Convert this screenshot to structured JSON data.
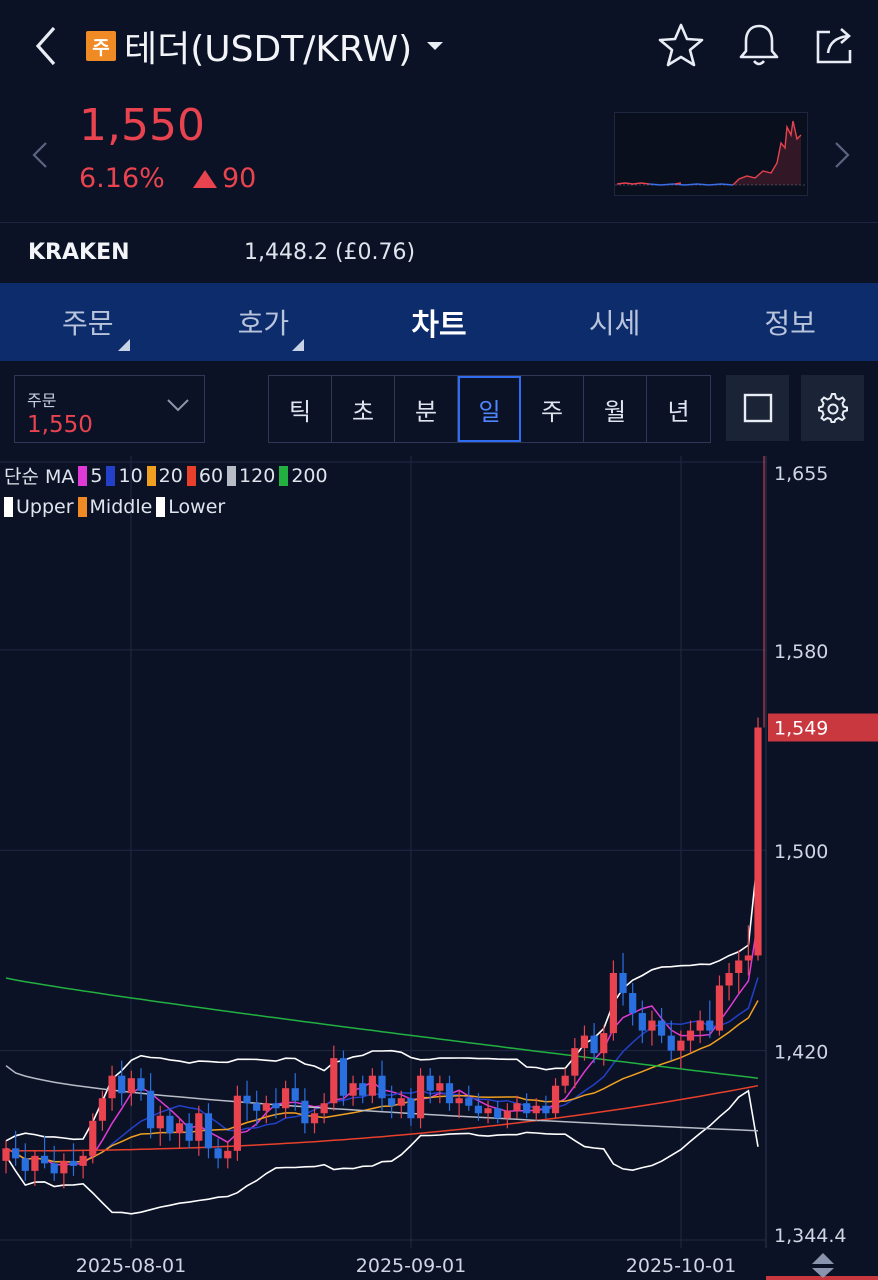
{
  "header": {
    "badge": "주",
    "title": "테더(USDT/KRW)"
  },
  "price": {
    "current": "1,550",
    "change_pct": "6.16%",
    "change_abs": "90"
  },
  "exchange": {
    "name": "KRAKEN",
    "value": "1,448.2 (£0.76)"
  },
  "tabs": [
    {
      "label": "주문",
      "has_menu": true
    },
    {
      "label": "호가",
      "has_menu": true
    },
    {
      "label": "차트",
      "active": true
    },
    {
      "label": "시세"
    },
    {
      "label": "정보"
    }
  ],
  "order_select": {
    "label": "주문",
    "value": "1,550"
  },
  "periods": [
    "틱",
    "초",
    "분",
    "일",
    "주",
    "월",
    "년"
  ],
  "selected_period": "일",
  "legend": {
    "ma_prefix": "단순 MA",
    "ma": [
      {
        "label": "5",
        "color": "#e03ad6"
      },
      {
        "label": "10",
        "color": "#2340c8"
      },
      {
        "label": "20",
        "color": "#f0a020"
      },
      {
        "label": "60",
        "color": "#e8402a"
      },
      {
        "label": "120",
        "color": "#b8bcc6"
      },
      {
        "label": "200",
        "color": "#22b040"
      }
    ],
    "bands": [
      {
        "label": "Upper",
        "color": "#ffffff"
      },
      {
        "label": "Middle",
        "color": "#f08a24"
      },
      {
        "label": "Lower",
        "color": "#ffffff"
      }
    ]
  },
  "colors": {
    "up": "#e8434f",
    "down": "#2a6fe0",
    "background": "#0b1226",
    "tab_bar": "#0c2c6b"
  },
  "chart_data": {
    "type": "candlestick",
    "y_ticks": [
      "1,655",
      "1,580",
      "1,500",
      "1,420",
      "1,344.4"
    ],
    "x_ticks": [
      "2025-08-01",
      "2025-09-01",
      "2025-10-01"
    ],
    "last_price_label": "1,549",
    "ylim": [
      1344.4,
      1655
    ],
    "candles": [
      [
        1376,
        1384,
        1371,
        1381
      ],
      [
        1381,
        1388,
        1374,
        1377
      ],
      [
        1377,
        1383,
        1368,
        1372
      ],
      [
        1372,
        1380,
        1366,
        1378
      ],
      [
        1378,
        1386,
        1373,
        1375
      ],
      [
        1375,
        1382,
        1368,
        1371
      ],
      [
        1371,
        1379,
        1365,
        1376
      ],
      [
        1376,
        1383,
        1370,
        1374
      ],
      [
        1374,
        1380,
        1369,
        1378
      ],
      [
        1378,
        1395,
        1375,
        1392
      ],
      [
        1392,
        1404,
        1388,
        1401
      ],
      [
        1401,
        1414,
        1396,
        1410
      ],
      [
        1410,
        1416,
        1398,
        1403
      ],
      [
        1403,
        1412,
        1398,
        1409
      ],
      [
        1409,
        1413,
        1400,
        1404
      ],
      [
        1404,
        1411,
        1385,
        1389
      ],
      [
        1389,
        1398,
        1382,
        1394
      ],
      [
        1394,
        1397,
        1384,
        1387
      ],
      [
        1387,
        1393,
        1381,
        1391
      ],
      [
        1391,
        1395,
        1381,
        1384
      ],
      [
        1384,
        1398,
        1378,
        1395
      ],
      [
        1395,
        1399,
        1377,
        1381
      ],
      [
        1381,
        1385,
        1373,
        1377
      ],
      [
        1377,
        1384,
        1373,
        1380
      ],
      [
        1380,
        1406,
        1376,
        1402
      ],
      [
        1402,
        1408,
        1392,
        1399
      ],
      [
        1399,
        1404,
        1390,
        1396
      ],
      [
        1396,
        1402,
        1391,
        1399
      ],
      [
        1399,
        1405,
        1393,
        1397
      ],
      [
        1397,
        1408,
        1393,
        1405
      ],
      [
        1405,
        1411,
        1396,
        1400
      ],
      [
        1400,
        1405,
        1387,
        1391
      ],
      [
        1391,
        1397,
        1387,
        1395
      ],
      [
        1395,
        1403,
        1391,
        1399
      ],
      [
        1399,
        1422,
        1396,
        1417
      ],
      [
        1417,
        1420,
        1398,
        1402
      ],
      [
        1402,
        1410,
        1398,
        1407
      ],
      [
        1407,
        1410,
        1399,
        1402
      ],
      [
        1402,
        1413,
        1399,
        1410
      ],
      [
        1410,
        1416,
        1396,
        1401
      ],
      [
        1401,
        1406,
        1393,
        1398
      ],
      [
        1398,
        1404,
        1393,
        1401
      ],
      [
        1401,
        1405,
        1390,
        1393
      ],
      [
        1393,
        1413,
        1389,
        1410
      ],
      [
        1410,
        1413,
        1399,
        1404
      ],
      [
        1404,
        1410,
        1399,
        1407
      ],
      [
        1407,
        1410,
        1396,
        1399
      ],
      [
        1399,
        1404,
        1393,
        1401
      ],
      [
        1401,
        1406,
        1396,
        1398
      ],
      [
        1398,
        1403,
        1392,
        1395
      ],
      [
        1395,
        1400,
        1391,
        1397
      ],
      [
        1397,
        1400,
        1391,
        1393
      ],
      [
        1393,
        1399,
        1389,
        1396
      ],
      [
        1396,
        1402,
        1393,
        1399
      ],
      [
        1399,
        1403,
        1393,
        1395
      ],
      [
        1395,
        1401,
        1392,
        1398
      ],
      [
        1398,
        1402,
        1393,
        1395
      ],
      [
        1395,
        1409,
        1393,
        1406
      ],
      [
        1406,
        1413,
        1403,
        1410
      ],
      [
        1410,
        1425,
        1405,
        1421
      ],
      [
        1421,
        1430,
        1416,
        1426
      ],
      [
        1426,
        1431,
        1415,
        1419
      ],
      [
        1419,
        1430,
        1414,
        1427
      ],
      [
        1427,
        1456,
        1424,
        1451
      ],
      [
        1451,
        1459,
        1438,
        1443
      ],
      [
        1443,
        1447,
        1430,
        1435
      ],
      [
        1435,
        1440,
        1423,
        1428
      ],
      [
        1428,
        1436,
        1422,
        1432
      ],
      [
        1432,
        1437,
        1423,
        1426
      ],
      [
        1426,
        1432,
        1416,
        1420
      ],
      [
        1420,
        1428,
        1413,
        1424
      ],
      [
        1424,
        1432,
        1419,
        1428
      ],
      [
        1428,
        1436,
        1423,
        1432
      ],
      [
        1432,
        1440,
        1425,
        1428
      ],
      [
        1428,
        1450,
        1426,
        1446
      ],
      [
        1446,
        1455,
        1440,
        1451
      ],
      [
        1451,
        1460,
        1443,
        1456
      ],
      [
        1456,
        1470,
        1450,
        1458
      ],
      [
        1458,
        1553,
        1456,
        1549
      ]
    ]
  }
}
